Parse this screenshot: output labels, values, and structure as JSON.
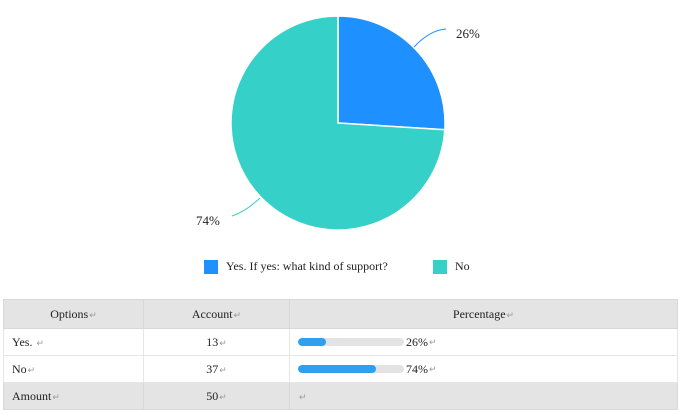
{
  "chart_data": {
    "type": "pie",
    "slices": [
      {
        "label": "Yes. If yes: what kind of support?",
        "value": 26,
        "display": "26%",
        "color": "#1e90ff"
      },
      {
        "label": "No",
        "value": 74,
        "display": "74%",
        "color": "#35d0c8"
      }
    ],
    "legend_position": "bottom"
  },
  "legend": [
    {
      "label": "Yes. If yes: what kind of support?",
      "color": "#1e90ff"
    },
    {
      "label": "No",
      "color": "#35d0c8"
    }
  ],
  "table": {
    "headers": {
      "options": "Options",
      "account": "Account",
      "percentage": "Percentage"
    },
    "rows": [
      {
        "option": "Yes. ",
        "account": "13",
        "percent_text": "26%",
        "percent": 26
      },
      {
        "option": "No",
        "account": "37",
        "percent_text": "74%",
        "percent": 74
      }
    ],
    "total": {
      "option": "Amount",
      "account": "50"
    },
    "bar_color": "#2f9ff0"
  },
  "mark_glyph": "↵"
}
